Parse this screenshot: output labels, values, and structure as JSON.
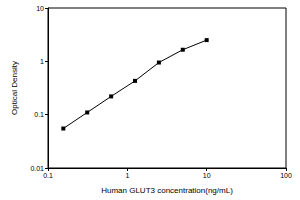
{
  "chart_data": {
    "type": "line",
    "x_label": "Human GLUT3 concentration(ng/mL)",
    "y_label": "Optical Density",
    "x": [
      0.156,
      0.312,
      0.625,
      1.25,
      2.5,
      5,
      10
    ],
    "values": [
      0.055,
      0.11,
      0.22,
      0.43,
      0.95,
      1.65,
      2.5
    ],
    "color": "#000000",
    "marker": "square",
    "line_style": "solid",
    "log": true,
    "xlim": [
      0.1,
      100
    ],
    "xticks": [
      0.1,
      1,
      10,
      100
    ],
    "ylim": [
      0.01,
      10
    ],
    "yticks": [
      0.01,
      0.1,
      1,
      10
    ],
    "grid": false
  }
}
